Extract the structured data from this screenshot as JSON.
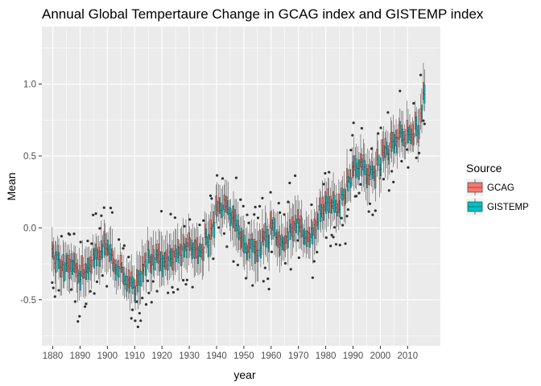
{
  "chart_data": {
    "type": "box",
    "title": "Annual Global Tempertaure Change in GCAG index and GISTEMP index",
    "xlabel": "year",
    "ylabel": "Mean",
    "xlim": [
      1876,
      2022
    ],
    "ylim": [
      -0.82,
      1.4
    ],
    "x_ticks": [
      1880,
      1890,
      1900,
      1910,
      1920,
      1930,
      1940,
      1950,
      1960,
      1970,
      1980,
      1990,
      2000,
      2010
    ],
    "y_ticks": [
      -0.5,
      0.0,
      0.5,
      1.0
    ],
    "y_tick_labels": [
      "-0.5",
      "0.0",
      "0.5",
      "1.0"
    ],
    "grid": true,
    "legend": {
      "title": "Source",
      "position": "right"
    },
    "series": [
      {
        "name": "GCAG",
        "color": "#F8766D"
      },
      {
        "name": "GISTEMP",
        "color": "#00BFC4"
      }
    ],
    "annual_mean_approx": [
      [
        1880,
        -0.2
      ],
      [
        1885,
        -0.25
      ],
      [
        1890,
        -0.32
      ],
      [
        1895,
        -0.22
      ],
      [
        1900,
        -0.12
      ],
      [
        1905,
        -0.3
      ],
      [
        1910,
        -0.4
      ],
      [
        1915,
        -0.2
      ],
      [
        1920,
        -0.25
      ],
      [
        1925,
        -0.2
      ],
      [
        1930,
        -0.13
      ],
      [
        1935,
        -0.14
      ],
      [
        1940,
        0.1
      ],
      [
        1944,
        0.18
      ],
      [
        1950,
        -0.12
      ],
      [
        1955,
        -0.12
      ],
      [
        1960,
        0.0
      ],
      [
        1965,
        -0.1
      ],
      [
        1970,
        0.0
      ],
      [
        1975,
        -0.05
      ],
      [
        1980,
        0.2
      ],
      [
        1985,
        0.15
      ],
      [
        1990,
        0.4
      ],
      [
        1995,
        0.4
      ],
      [
        2000,
        0.45
      ],
      [
        2005,
        0.62
      ],
      [
        2010,
        0.66
      ],
      [
        2014,
        0.72
      ],
      [
        2016,
        0.95
      ]
    ]
  }
}
